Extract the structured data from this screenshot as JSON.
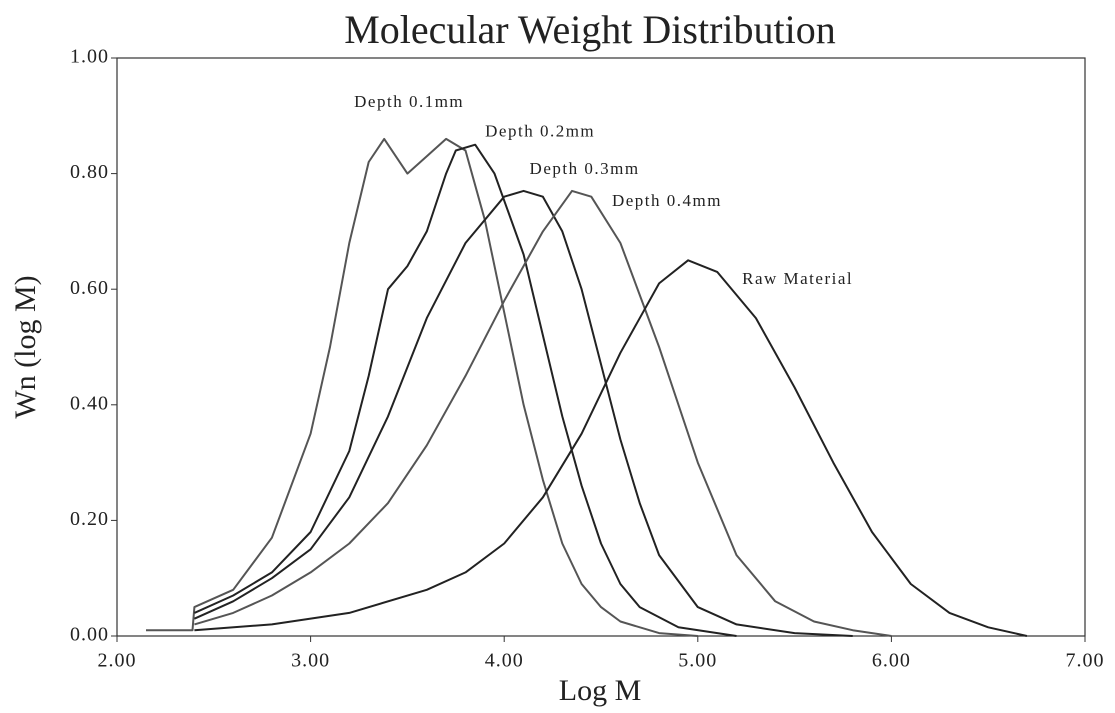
{
  "chart_data": {
    "type": "line",
    "title": "Molecular Weight Distribution",
    "x_label": "Log M",
    "y_label": "Wn (log M)",
    "xlim": [
      2,
      7
    ],
    "ylim": [
      0,
      1
    ],
    "xticks": [
      {
        "value": 2,
        "label": "2.00"
      },
      {
        "value": 3,
        "label": "3.00"
      },
      {
        "value": 4,
        "label": "4.00"
      },
      {
        "value": 5,
        "label": "5.00"
      },
      {
        "value": 6,
        "label": "6.00"
      },
      {
        "value": 7,
        "label": "7.00"
      }
    ],
    "yticks": [
      {
        "value": 0,
        "label": "0.00"
      },
      {
        "value": 0.2,
        "label": "0.20"
      },
      {
        "value": 0.4,
        "label": "0.40"
      },
      {
        "value": 0.6,
        "label": "0.60"
      },
      {
        "value": 0.8,
        "label": "0.80"
      },
      {
        "value": 1,
        "label": "1.00"
      }
    ],
    "series": [
      {
        "name": "Depth 0.1mm",
        "color": "#555555",
        "x": [
          2.15,
          2.39,
          2.4,
          2.6,
          2.8,
          3.0,
          3.1,
          3.2,
          3.3,
          3.38,
          3.5,
          3.6,
          3.7,
          3.8,
          3.9,
          4.0,
          4.1,
          4.2,
          4.3,
          4.4,
          4.5,
          4.6,
          4.8,
          5.0
        ],
        "values": [
          0.01,
          0.01,
          0.05,
          0.08,
          0.17,
          0.35,
          0.5,
          0.68,
          0.82,
          0.86,
          0.8,
          0.83,
          0.86,
          0.84,
          0.72,
          0.56,
          0.4,
          0.27,
          0.16,
          0.09,
          0.05,
          0.025,
          0.005,
          0.0
        ]
      },
      {
        "name": "Depth 0.2mm",
        "color": "#222222",
        "x": [
          2.4,
          2.6,
          2.8,
          3.0,
          3.2,
          3.3,
          3.4,
          3.5,
          3.6,
          3.7,
          3.75,
          3.85,
          3.95,
          4.1,
          4.2,
          4.3,
          4.4,
          4.5,
          4.6,
          4.7,
          4.9,
          5.2
        ],
        "values": [
          0.04,
          0.07,
          0.11,
          0.18,
          0.32,
          0.45,
          0.6,
          0.64,
          0.7,
          0.8,
          0.84,
          0.85,
          0.8,
          0.66,
          0.52,
          0.38,
          0.26,
          0.16,
          0.09,
          0.05,
          0.015,
          0.0
        ]
      },
      {
        "name": "Depth 0.3mm",
        "color": "#222222",
        "x": [
          2.4,
          2.6,
          2.8,
          3.0,
          3.2,
          3.4,
          3.6,
          3.8,
          4.0,
          4.1,
          4.2,
          4.3,
          4.4,
          4.5,
          4.6,
          4.7,
          4.8,
          5.0,
          5.2,
          5.5,
          5.8
        ],
        "values": [
          0.03,
          0.06,
          0.1,
          0.15,
          0.24,
          0.38,
          0.55,
          0.68,
          0.76,
          0.77,
          0.76,
          0.7,
          0.6,
          0.47,
          0.34,
          0.23,
          0.14,
          0.05,
          0.02,
          0.005,
          0.0
        ]
      },
      {
        "name": "Depth 0.4mm",
        "color": "#555555",
        "x": [
          2.4,
          2.6,
          2.8,
          3.0,
          3.2,
          3.4,
          3.6,
          3.8,
          4.0,
          4.2,
          4.35,
          4.45,
          4.6,
          4.8,
          5.0,
          5.2,
          5.4,
          5.6,
          5.8,
          6.0
        ],
        "values": [
          0.02,
          0.04,
          0.07,
          0.11,
          0.16,
          0.23,
          0.33,
          0.45,
          0.58,
          0.7,
          0.77,
          0.76,
          0.68,
          0.5,
          0.3,
          0.14,
          0.06,
          0.025,
          0.01,
          0.0
        ]
      },
      {
        "name": "Raw Material",
        "color": "#222222",
        "x": [
          2.4,
          2.8,
          3.2,
          3.6,
          3.8,
          4.0,
          4.2,
          4.4,
          4.6,
          4.8,
          4.95,
          5.1,
          5.3,
          5.5,
          5.7,
          5.9,
          6.1,
          6.3,
          6.5,
          6.7
        ],
        "values": [
          0.01,
          0.02,
          0.04,
          0.08,
          0.11,
          0.16,
          0.24,
          0.35,
          0.49,
          0.61,
          0.65,
          0.63,
          0.55,
          0.43,
          0.3,
          0.18,
          0.09,
          0.04,
          0.015,
          0.0
        ]
      }
    ]
  }
}
